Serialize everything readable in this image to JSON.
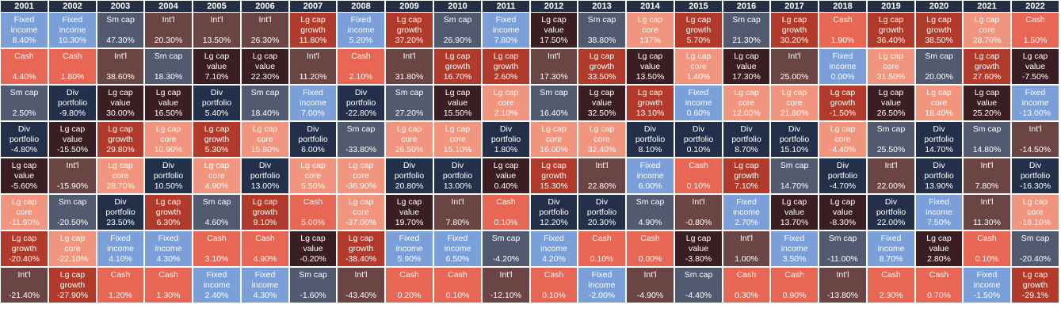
{
  "chart_data": {
    "type": "table",
    "title": "",
    "years": [
      "2001",
      "2002",
      "2003",
      "2004",
      "2005",
      "2006",
      "2007",
      "2008",
      "2009",
      "2010",
      "2011",
      "2012",
      "2013",
      "2014",
      "2015",
      "2016",
      "2017",
      "2018",
      "2019",
      "2020",
      "2021",
      "2022"
    ],
    "asset_classes": {
      "fi": {
        "label": "Fixed income",
        "color": "#7B9FD9"
      },
      "cash": {
        "label": "Cash",
        "color": "#E86654"
      },
      "sm": {
        "label": "Sm cap",
        "color": "#525A70"
      },
      "intl": {
        "label": "Int'l",
        "color": "#6B4543"
      },
      "lgg": {
        "label": "Lg cap growth",
        "color": "#B13A2B"
      },
      "lgv": {
        "label": "Lg cap value",
        "color": "#3A1E24"
      },
      "lgc": {
        "label": "Lg cap core",
        "color": "#F2957E"
      },
      "div": {
        "label": "Div portfolio",
        "color": "#243049"
      }
    },
    "columns": [
      [
        {
          "a": "fi",
          "v": "8.40%"
        },
        {
          "a": "cash",
          "v": "4.40%"
        },
        {
          "a": "sm",
          "v": "2.50%"
        },
        {
          "a": "div",
          "v": "-4.80%"
        },
        {
          "a": "lgv",
          "v": "-5.60%"
        },
        {
          "a": "lgc",
          "v": "-11.90%"
        },
        {
          "a": "lgg",
          "v": "-20.40%"
        },
        {
          "a": "intl",
          "v": "-21.40%"
        }
      ],
      [
        {
          "a": "fi",
          "v": "10.30%"
        },
        {
          "a": "cash",
          "v": "1.80%"
        },
        {
          "a": "div",
          "v": "-9.80%"
        },
        {
          "a": "lgv",
          "v": "-15.50%"
        },
        {
          "a": "intl",
          "v": "-15.90%"
        },
        {
          "a": "sm",
          "v": "-20.50%"
        },
        {
          "a": "lgc",
          "v": "-22.10%"
        },
        {
          "a": "lgg",
          "v": "-27.90%"
        }
      ],
      [
        {
          "a": "sm",
          "v": "47.30%"
        },
        {
          "a": "intl",
          "v": "38.60%"
        },
        {
          "a": "lgv",
          "v": "30.00%"
        },
        {
          "a": "lgg",
          "v": "29.80%"
        },
        {
          "a": "lgc",
          "v": "28.70%"
        },
        {
          "a": "div",
          "v": "23.50%"
        },
        {
          "a": "fi",
          "v": "4.10%"
        },
        {
          "a": "cash",
          "v": "1.20%"
        }
      ],
      [
        {
          "a": "intl",
          "v": "20.30%"
        },
        {
          "a": "sm",
          "v": "18.30%"
        },
        {
          "a": "lgv",
          "v": "16.50%"
        },
        {
          "a": "lgc",
          "v": "10.90%"
        },
        {
          "a": "div",
          "v": "10.50%"
        },
        {
          "a": "lgg",
          "v": "6.30%"
        },
        {
          "a": "fi",
          "v": "4.30%"
        },
        {
          "a": "cash",
          "v": "1.30%"
        }
      ],
      [
        {
          "a": "intl",
          "v": "13.50%"
        },
        {
          "a": "lgv",
          "v": "7.10%"
        },
        {
          "a": "div",
          "v": "5.40%"
        },
        {
          "a": "lgg",
          "v": "5.30%"
        },
        {
          "a": "lgc",
          "v": "4.90%"
        },
        {
          "a": "sm",
          "v": "4.60%"
        },
        {
          "a": "cash",
          "v": "3.10%"
        },
        {
          "a": "fi",
          "v": "2.40%"
        }
      ],
      [
        {
          "a": "intl",
          "v": "26.30%"
        },
        {
          "a": "lgv",
          "v": "22.30%"
        },
        {
          "a": "sm",
          "v": "18.40%"
        },
        {
          "a": "lgc",
          "v": "15.80%"
        },
        {
          "a": "div",
          "v": "13.00%"
        },
        {
          "a": "lgg",
          "v": "9.10%"
        },
        {
          "a": "cash",
          "v": "4.90%"
        },
        {
          "a": "fi",
          "v": "4.30%"
        }
      ],
      [
        {
          "a": "lgg",
          "v": "11.80%"
        },
        {
          "a": "intl",
          "v": "11.20%"
        },
        {
          "a": "fi",
          "v": "7.00%"
        },
        {
          "a": "div",
          "v": "6.00%"
        },
        {
          "a": "lgc",
          "v": "5.50%"
        },
        {
          "a": "cash",
          "v": "5.00%"
        },
        {
          "a": "lgv",
          "v": "-0.20%"
        },
        {
          "a": "sm",
          "v": "-1.60%"
        }
      ],
      [
        {
          "a": "fi",
          "v": "5.20%"
        },
        {
          "a": "cash",
          "v": "2.10%"
        },
        {
          "a": "div",
          "v": "-22.80%"
        },
        {
          "a": "sm",
          "v": "-33.80%"
        },
        {
          "a": "lgc",
          "v": "-36.90%"
        },
        {
          "a": "lgc",
          "v": "-37.00%"
        },
        {
          "a": "lgg",
          "v": "-38.40%"
        },
        {
          "a": "intl",
          "v": "-43.40%"
        }
      ],
      [
        {
          "a": "lgg",
          "v": "37.20%"
        },
        {
          "a": "intl",
          "v": "31.80%"
        },
        {
          "a": "sm",
          "v": "27.20%"
        },
        {
          "a": "lgc",
          "v": "26.50%"
        },
        {
          "a": "div",
          "v": "20.80%"
        },
        {
          "a": "lgv",
          "v": "19.70%"
        },
        {
          "a": "fi",
          "v": "5.90%"
        },
        {
          "a": "cash",
          "v": "0.20%"
        }
      ],
      [
        {
          "a": "sm",
          "v": "26.90%"
        },
        {
          "a": "lgg",
          "v": "16.70%"
        },
        {
          "a": "lgv",
          "v": "15.50%"
        },
        {
          "a": "lgc",
          "v": "15.10%"
        },
        {
          "a": "div",
          "v": "13.00%"
        },
        {
          "a": "intl",
          "v": "7.80%"
        },
        {
          "a": "fi",
          "v": "6.50%"
        },
        {
          "a": "cash",
          "v": "0.10%"
        }
      ],
      [
        {
          "a": "fi",
          "v": "7.80%"
        },
        {
          "a": "lgg",
          "v": "2.60%"
        },
        {
          "a": "lgc",
          "v": "2.10%"
        },
        {
          "a": "div",
          "v": "1.80%"
        },
        {
          "a": "lgv",
          "v": "0.40%"
        },
        {
          "a": "cash",
          "v": "0.10%"
        },
        {
          "a": "sm",
          "v": "-4.20%"
        },
        {
          "a": "intl",
          "v": "-12.10%"
        }
      ],
      [
        {
          "a": "lgv",
          "v": "17.50%"
        },
        {
          "a": "intl",
          "v": "17.30%"
        },
        {
          "a": "sm",
          "v": "16.40%"
        },
        {
          "a": "lgc",
          "v": "16.00%"
        },
        {
          "a": "lgg",
          "v": "15.30%"
        },
        {
          "a": "div",
          "v": "12.20%"
        },
        {
          "a": "fi",
          "v": "4.20%"
        },
        {
          "a": "cash",
          "v": "0.10%"
        }
      ],
      [
        {
          "a": "sm",
          "v": "38.80%"
        },
        {
          "a": "lgg",
          "v": "33.50%"
        },
        {
          "a": "lgv",
          "v": "32.50%"
        },
        {
          "a": "lgc",
          "v": "32.40%"
        },
        {
          "a": "intl",
          "v": "22.80%"
        },
        {
          "a": "div",
          "v": "20.30%"
        },
        {
          "a": "cash",
          "v": "0.10%"
        },
        {
          "a": "fi",
          "v": "-2.00%"
        }
      ],
      [
        {
          "a": "lgc",
          "v": "137%"
        },
        {
          "a": "lgv",
          "v": "13.50%"
        },
        {
          "a": "lgg",
          "v": "13.10%"
        },
        {
          "a": "div",
          "v": "8.10%"
        },
        {
          "a": "fi",
          "v": "6.00%"
        },
        {
          "a": "sm",
          "v": "4.90%"
        },
        {
          "a": "cash",
          "v": "0.00%"
        },
        {
          "a": "intl",
          "v": "-4.90%"
        }
      ],
      [
        {
          "a": "lgg",
          "v": "5.70%"
        },
        {
          "a": "lgc",
          "v": "1.40%"
        },
        {
          "a": "fi",
          "v": "0.60%"
        },
        {
          "a": "div",
          "v": "0.10%"
        },
        {
          "a": "cash",
          "v": "0.10%"
        },
        {
          "a": "intl",
          "v": "-0.80%"
        },
        {
          "a": "lgv",
          "v": "-3.80%"
        },
        {
          "a": "sm",
          "v": "-4.40%"
        }
      ],
      [
        {
          "a": "sm",
          "v": "21.30%"
        },
        {
          "a": "lgv",
          "v": "17.30%"
        },
        {
          "a": "lgc",
          "v": "12.00%"
        },
        {
          "a": "div",
          "v": "8.70%"
        },
        {
          "a": "lgg",
          "v": "7.10%"
        },
        {
          "a": "fi",
          "v": "2.70%"
        },
        {
          "a": "intl",
          "v": "1.00%"
        },
        {
          "a": "cash",
          "v": "0.30%"
        }
      ],
      [
        {
          "a": "lgg",
          "v": "30.20%"
        },
        {
          "a": "intl",
          "v": "25.00%"
        },
        {
          "a": "lgc",
          "v": "21.80%"
        },
        {
          "a": "div",
          "v": "15.10%"
        },
        {
          "a": "sm",
          "v": "14.70%"
        },
        {
          "a": "lgv",
          "v": "13.70%"
        },
        {
          "a": "fi",
          "v": "3.50%"
        },
        {
          "a": "cash",
          "v": "0.90%"
        }
      ],
      [
        {
          "a": "cash",
          "v": "1.90%"
        },
        {
          "a": "fi",
          "v": "0.00%"
        },
        {
          "a": "lgg",
          "v": "-1.50%"
        },
        {
          "a": "lgc",
          "v": "-4.40%"
        },
        {
          "a": "div",
          "v": "-4.70%"
        },
        {
          "a": "lgv",
          "v": "-8.30%"
        },
        {
          "a": "sm",
          "v": "-11.00%"
        },
        {
          "a": "intl",
          "v": "-13.80%"
        }
      ],
      [
        {
          "a": "lgg",
          "v": "36.40%"
        },
        {
          "a": "lgc",
          "v": "31.50%"
        },
        {
          "a": "lgv",
          "v": "26.50%"
        },
        {
          "a": "sm",
          "v": "25.50%"
        },
        {
          "a": "intl",
          "v": "22.00%"
        },
        {
          "a": "div",
          "v": "22.00%"
        },
        {
          "a": "fi",
          "v": "8.70%"
        },
        {
          "a": "cash",
          "v": "2.30%"
        }
      ],
      [
        {
          "a": "lgg",
          "v": "38.50%"
        },
        {
          "a": "sm",
          "v": "20.00%"
        },
        {
          "a": "lgc",
          "v": "18.40%"
        },
        {
          "a": "div",
          "v": "14.70%"
        },
        {
          "a": "div",
          "v": "13.90%"
        },
        {
          "a": "fi",
          "v": "7.50%"
        },
        {
          "a": "lgv",
          "v": "2.80%"
        },
        {
          "a": "cash",
          "v": "0.70%"
        }
      ],
      [
        {
          "a": "lgc",
          "v": "28.70%"
        },
        {
          "a": "lgg",
          "v": "27.60%"
        },
        {
          "a": "lgv",
          "v": "25.20%"
        },
        {
          "a": "sm",
          "v": "14.80%"
        },
        {
          "a": "intl",
          "v": "7.80%"
        },
        {
          "a": "intl",
          "v": "11.30%"
        },
        {
          "a": "cash",
          "v": "0.10%"
        },
        {
          "a": "fi",
          "v": "-1.50%"
        }
      ],
      [
        {
          "a": "cash",
          "v": "1.50%"
        },
        {
          "a": "lgv",
          "v": "-7.50%"
        },
        {
          "a": "fi",
          "v": "-13.00%"
        },
        {
          "a": "intl",
          "v": "-14.50%"
        },
        {
          "a": "div",
          "v": "-16.30%"
        },
        {
          "a": "lgc",
          "v": "-18.10%"
        },
        {
          "a": "sm",
          "v": "-20.40%"
        },
        {
          "a": "lgg",
          "v": "-29.1%"
        }
      ]
    ]
  }
}
